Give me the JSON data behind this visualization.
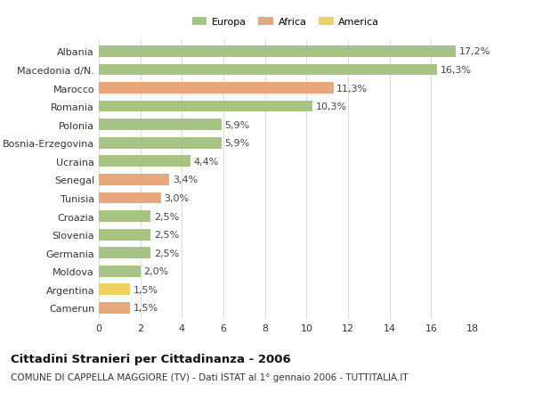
{
  "categories": [
    "Albania",
    "Macedonia d/N.",
    "Marocco",
    "Romania",
    "Polonia",
    "Bosnia-Erzegovina",
    "Ucraina",
    "Senegal",
    "Tunisia",
    "Croazia",
    "Slovenia",
    "Germania",
    "Moldova",
    "Argentina",
    "Camerun"
  ],
  "values": [
    17.2,
    16.3,
    11.3,
    10.3,
    5.9,
    5.9,
    4.4,
    3.4,
    3.0,
    2.5,
    2.5,
    2.5,
    2.0,
    1.5,
    1.5
  ],
  "labels": [
    "17,2%",
    "16,3%",
    "11,3%",
    "10,3%",
    "5,9%",
    "5,9%",
    "4,4%",
    "3,4%",
    "3,0%",
    "2,5%",
    "2,5%",
    "2,5%",
    "2,0%",
    "1,5%",
    "1,5%"
  ],
  "continents": [
    "Europa",
    "Europa",
    "Africa",
    "Europa",
    "Europa",
    "Europa",
    "Europa",
    "Africa",
    "Africa",
    "Europa",
    "Europa",
    "Europa",
    "Europa",
    "America",
    "Africa"
  ],
  "colors": {
    "Europa": "#a8c484",
    "Africa": "#e8a87c",
    "America": "#f0d060"
  },
  "legend_order": [
    "Europa",
    "Africa",
    "America"
  ],
  "xlim": [
    0,
    18
  ],
  "xticks": [
    0,
    2,
    4,
    6,
    8,
    10,
    12,
    14,
    16,
    18
  ],
  "title_bold": "Cittadini Stranieri per Cittadinanza - 2006",
  "subtitle": "COMUNE DI CAPPELLA MAGGIORE (TV) - Dati ISTAT al 1° gennaio 2006 - TUTTITALIA.IT",
  "bg_color": "#ffffff",
  "grid_color": "#dddddd",
  "bar_height": 0.62,
  "label_fontsize": 8,
  "tick_fontsize": 8,
  "title_fontsize": 9.5,
  "subtitle_fontsize": 7.5
}
